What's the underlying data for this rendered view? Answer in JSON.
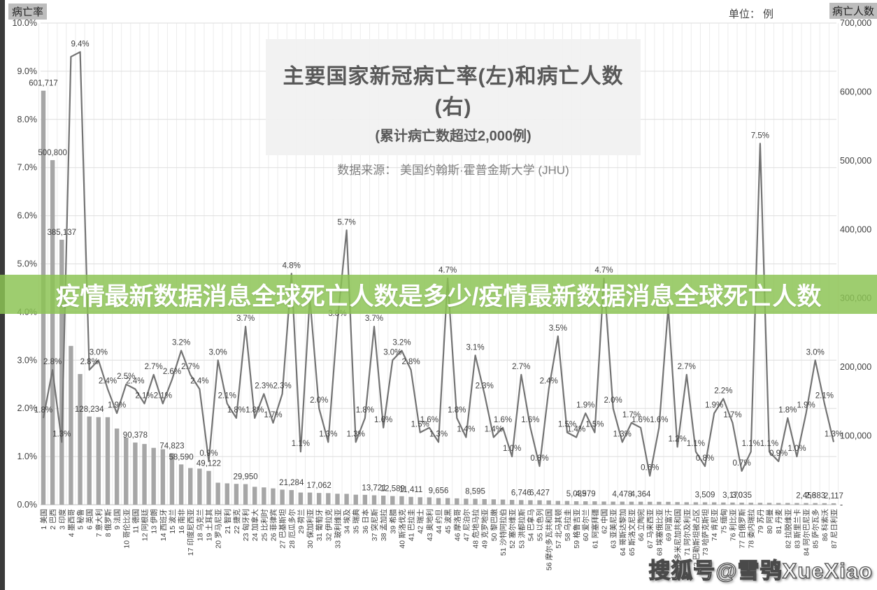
{
  "corner": {
    "left_axis_tag": "病亡率",
    "unit_note": "单位： 例",
    "right_axis_tag": "病亡人数"
  },
  "title_block": {
    "title": "主要国家新冠病亡率(左)和病亡人数(右)",
    "subtitle": "(累计病亡数超过2,000例)",
    "source": "数据来源： 美国约翰斯·霍普金斯大学 (JHU)"
  },
  "overlay_banner": {
    "text": "疫情最新数据消息全球死亡人数是多少/疫情最新数据消息全球死亡人数",
    "bg_color": "#8bc454"
  },
  "watermark": {
    "text": "搜狐号@雪鸮XueXiao"
  },
  "chart_data": {
    "type": "bar+line-dual-axis",
    "bar_series_name": "病亡人数",
    "line_series_name": "病亡率",
    "bar_color": "#a6a6a6",
    "line_color": "#737373",
    "grid_color": "#dedede",
    "vgrid_color": "#ececec",
    "label_color": "#3f3f3f",
    "left_axis": {
      "min": 0,
      "max": 10,
      "ticks": [
        "10.0%",
        "9.0%",
        "8.0%",
        "7.0%",
        "6.0%",
        "5.0%",
        "4.0%",
        "3.0%",
        "2.0%",
        "1.0%",
        "0.0%"
      ]
    },
    "right_axis": {
      "min": 0,
      "max": 700000,
      "ticks": [
        "700,000",
        "600,000",
        "500,000",
        "400,000",
        "300,000",
        "200,000",
        "100,000",
        "-"
      ]
    },
    "countries": [
      {
        "label": "1 美国",
        "deaths": 601717,
        "deaths_label": "601,717",
        "cfr": 1.8,
        "cfr_label": "1.8%"
      },
      {
        "label": "2 巴西",
        "deaths": 500800,
        "deaths_label": "500,800",
        "cfr": 2.8,
        "cfr_label": "2.8%"
      },
      {
        "label": "3 印度",
        "deaths": 385137,
        "deaths_label": "385,137",
        "cfr": 1.3,
        "cfr_label": "1.3%"
      },
      {
        "label": "4 墨西哥",
        "deaths": 230792,
        "deaths_label": "",
        "cfr": 9.3,
        "cfr_label": ""
      },
      {
        "label": "5 秘鲁",
        "deaths": 189933,
        "deaths_label": "",
        "cfr": 9.4,
        "cfr_label": "9.4%"
      },
      {
        "label": "6 英国",
        "deaths": 128234,
        "deaths_label": "128,234",
        "cfr": 2.8,
        "cfr_label": "2.8%"
      },
      {
        "label": "7 意大利",
        "deaths": 127291,
        "deaths_label": "",
        "cfr": 3.0,
        "cfr_label": "3.0%"
      },
      {
        "label": "8 俄罗斯",
        "deaths": 127180,
        "deaths_label": "",
        "cfr": 2.4,
        "cfr_label": "2.4%"
      },
      {
        "label": "9 法国",
        "deaths": 110702,
        "deaths_label": "",
        "cfr": 1.9,
        "cfr_label": "1.9%"
      },
      {
        "label": "10 哥伦比亚",
        "deaths": 97560,
        "deaths_label": "",
        "cfr": 2.5,
        "cfr_label": "2.5%"
      },
      {
        "label": "11 德国",
        "deaths": 90378,
        "deaths_label": "90,378",
        "cfr": 2.4,
        "cfr_label": "2.4%"
      },
      {
        "label": "12 阿根廷",
        "deaths": 88247,
        "deaths_label": "",
        "cfr": 2.1,
        "cfr_label": "2.1%"
      },
      {
        "label": "13 伊朗",
        "deaths": 82619,
        "deaths_label": "",
        "cfr": 2.7,
        "cfr_label": "2.7%"
      },
      {
        "label": "14 西班牙",
        "deaths": 80634,
        "deaths_label": "",
        "cfr": 2.1,
        "cfr_label": "2.1%"
      },
      {
        "label": "15 波兰",
        "deaths": 74823,
        "deaths_label": "74,823",
        "cfr": 2.6,
        "cfr_label": "2.6%"
      },
      {
        "label": "16 南非",
        "deaths": 58590,
        "deaths_label": "58,590",
        "cfr": 3.2,
        "cfr_label": "3.2%"
      },
      {
        "label": "17 印度尼西亚",
        "deaths": 53280,
        "deaths_label": "",
        "cfr": 2.7,
        "cfr_label": "2.7%"
      },
      {
        "label": "18 乌克兰",
        "deaths": 52414,
        "deaths_label": "",
        "cfr": 2.4,
        "cfr_label": "2.4%"
      },
      {
        "label": "19 土耳其",
        "deaths": 49122,
        "deaths_label": "49,122",
        "cfr": 0.9,
        "cfr_label": "0.9%"
      },
      {
        "label": "20 罗马尼亚",
        "deaths": 31969,
        "deaths_label": "",
        "cfr": 3.0,
        "cfr_label": "3.0%"
      },
      {
        "label": "21 智利",
        "deaths": 31068,
        "deaths_label": "",
        "cfr": 2.1,
        "cfr_label": "2.1%"
      },
      {
        "label": "22 捷克",
        "deaths": 30280,
        "deaths_label": "",
        "cfr": 1.8,
        "cfr_label": "1.8%"
      },
      {
        "label": "23 匈牙利",
        "deaths": 29950,
        "deaths_label": "29,950",
        "cfr": 3.7,
        "cfr_label": "3.7%"
      },
      {
        "label": "24 加拿大",
        "deaths": 26035,
        "deaths_label": "",
        "cfr": 1.8,
        "cfr_label": "1.8%"
      },
      {
        "label": "25 比利时",
        "deaths": 25141,
        "deaths_label": "",
        "cfr": 2.3,
        "cfr_label": "2.3%"
      },
      {
        "label": "26 菲律宾",
        "deaths": 23749,
        "deaths_label": "",
        "cfr": 1.7,
        "cfr_label": "1.7%"
      },
      {
        "label": "27 巴基斯坦",
        "deaths": 21913,
        "deaths_label": "",
        "cfr": 2.3,
        "cfr_label": "2.3%"
      },
      {
        "label": "28 厄瓜多尔",
        "deaths": 21284,
        "deaths_label": "21,284",
        "cfr": 4.8,
        "cfr_label": "4.8%"
      },
      {
        "label": "29 荷兰",
        "deaths": 17720,
        "deaths_label": "",
        "cfr": 1.1,
        "cfr_label": "1.1%"
      },
      {
        "label": "30 保加利亚",
        "deaths": 17678,
        "deaths_label": "",
        "cfr": 4.3,
        "cfr_label": ""
      },
      {
        "label": "31 葡萄牙",
        "deaths": 17062,
        "deaths_label": "17,062",
        "cfr": 2.0,
        "cfr_label": "2.0%"
      },
      {
        "label": "32 伊拉克",
        "deaths": 16834,
        "deaths_label": "",
        "cfr": 1.3,
        "cfr_label": "1.3%"
      },
      {
        "label": "33 玻利维亚",
        "deaths": 15938,
        "deaths_label": "",
        "cfr": 3.8,
        "cfr_label": "3.8%"
      },
      {
        "label": "34 埃及",
        "deaths": 15791,
        "deaths_label": "",
        "cfr": 5.7,
        "cfr_label": "5.7%"
      },
      {
        "label": "35 瑞典",
        "deaths": 14574,
        "deaths_label": "",
        "cfr": 1.3,
        "cfr_label": "1.3%"
      },
      {
        "label": "36 日本",
        "deaths": 14357,
        "deaths_label": "",
        "cfr": 1.8,
        "cfr_label": "1.8%"
      },
      {
        "label": "37 突尼斯",
        "deaths": 13721,
        "deaths_label": "13,721",
        "cfr": 3.7,
        "cfr_label": "3.7%"
      },
      {
        "label": "38 孟加拉",
        "deaths": 13222,
        "deaths_label": "",
        "cfr": 1.6,
        "cfr_label": "1.6%"
      },
      {
        "label": "39 希腊",
        "deaths": 12589,
        "deaths_label": "12,589",
        "cfr": 3.0,
        "cfr_label": "3.0%"
      },
      {
        "label": "40 斯洛伐克",
        "deaths": 12426,
        "deaths_label": "",
        "cfr": 3.2,
        "cfr_label": "3.2%"
      },
      {
        "label": "41 巴拉圭",
        "deaths": 11411,
        "deaths_label": "11,411",
        "cfr": 2.8,
        "cfr_label": "2.8%"
      },
      {
        "label": "42 瑞士",
        "deaths": 10882,
        "deaths_label": "",
        "cfr": 1.5,
        "cfr_label": "1.5%"
      },
      {
        "label": "43 奥地利",
        "deaths": 10690,
        "deaths_label": "",
        "cfr": 1.6,
        "cfr_label": "1.6%"
      },
      {
        "label": "44 约旦",
        "deaths": 9656,
        "deaths_label": "9,656",
        "cfr": 1.3,
        "cfr_label": "1.3%"
      },
      {
        "label": "45 波黑",
        "deaths": 9596,
        "deaths_label": "",
        "cfr": 4.7,
        "cfr_label": "4.7%"
      },
      {
        "label": "46 摩洛哥",
        "deaths": 9265,
        "deaths_label": "",
        "cfr": 1.8,
        "cfr_label": "1.8%"
      },
      {
        "label": "47 尼泊尔",
        "deaths": 8726,
        "deaths_label": "",
        "cfr": 1.4,
        "cfr_label": "1.4%"
      },
      {
        "label": "48 危地马拉",
        "deaths": 8595,
        "deaths_label": "8,595",
        "cfr": 3.1,
        "cfr_label": "3.1%"
      },
      {
        "label": "49 克罗地亚",
        "deaths": 8173,
        "deaths_label": "",
        "cfr": 2.3,
        "cfr_label": "2.3%"
      },
      {
        "label": "50 黎巴嫩",
        "deaths": 7845,
        "deaths_label": "",
        "cfr": 1.4,
        "cfr_label": "1.4%"
      },
      {
        "label": "51 沙特阿拉伯",
        "deaths": 7537,
        "deaths_label": "",
        "cfr": 1.6,
        "cfr_label": "1.6%"
      },
      {
        "label": "52 塞尔维亚",
        "deaths": 6993,
        "deaths_label": "",
        "cfr": 1.0,
        "cfr_label": "1.0%"
      },
      {
        "label": "53 洪都拉斯",
        "deaths": 6746,
        "deaths_label": "6,746",
        "cfr": 2.7,
        "cfr_label": "2.7%"
      },
      {
        "label": "54 巴拿马",
        "deaths": 6505,
        "deaths_label": "",
        "cfr": 1.6,
        "cfr_label": "1.6%"
      },
      {
        "label": "55 以色列",
        "deaths": 6427,
        "deaths_label": "6,427",
        "cfr": 0.8,
        "cfr_label": "0.8%"
      },
      {
        "label": "56 摩尔多瓦共和国",
        "deaths": 6206,
        "deaths_label": "",
        "cfr": 2.4,
        "cfr_label": "2.4%"
      },
      {
        "label": "57 北马其顿",
        "deaths": 5488,
        "deaths_label": "",
        "cfr": 3.5,
        "cfr_label": "3.5%"
      },
      {
        "label": "58 乌拉圭",
        "deaths": 5395,
        "deaths_label": "",
        "cfr": 1.5,
        "cfr_label": "1.5%"
      },
      {
        "label": "59 格鲁吉亚",
        "deaths": 5035,
        "deaths_label": "5,035",
        "cfr": 1.4,
        "cfr_label": "1.4%"
      },
      {
        "label": "60 爱尔兰",
        "deaths": 4979,
        "deaths_label": "4,979",
        "cfr": 1.9,
        "cfr_label": "1.9%"
      },
      {
        "label": "61 阿塞拜疆",
        "deaths": 4959,
        "deaths_label": "",
        "cfr": 1.5,
        "cfr_label": "1.5%"
      },
      {
        "label": "62 中国",
        "deaths": 4636,
        "deaths_label": "",
        "cfr": 4.7,
        "cfr_label": "4.7%"
      },
      {
        "label": "63 亚美尼亚",
        "deaths": 4512,
        "deaths_label": "",
        "cfr": 2.0,
        "cfr_label": "2.0%"
      },
      {
        "label": "64 哥斯达黎加",
        "deaths": 4478,
        "deaths_label": "4,478",
        "cfr": 1.3,
        "cfr_label": "1.3%"
      },
      {
        "label": "65 斯洛文尼亚",
        "deaths": 4397,
        "deaths_label": "",
        "cfr": 1.7,
        "cfr_label": "1.7%"
      },
      {
        "label": "66 立陶宛",
        "deaths": 4364,
        "deaths_label": "4,364",
        "cfr": 1.6,
        "cfr_label": "1.6%"
      },
      {
        "label": "67 马来西亚",
        "deaths": 4276,
        "deaths_label": "",
        "cfr": 0.6,
        "cfr_label": "0.6%"
      },
      {
        "label": "68 埃塞俄比亚",
        "deaths": 4257,
        "deaths_label": "",
        "cfr": 1.6,
        "cfr_label": "1.6%"
      },
      {
        "label": "69 阿富汗",
        "deaths": 4215,
        "deaths_label": "",
        "cfr": 4.1,
        "cfr_label": ""
      },
      {
        "label": "70 多米尼加共和国",
        "deaths": 3824,
        "deaths_label": "",
        "cfr": 1.2,
        "cfr_label": "1.2%"
      },
      {
        "label": "71 阿尔及利亚",
        "deaths": 3631,
        "deaths_label": "",
        "cfr": 2.7,
        "cfr_label": "2.7%"
      },
      {
        "label": "72 巴勒斯坦被占区",
        "deaths": 3554,
        "deaths_label": "",
        "cfr": 1.1,
        "cfr_label": "1.1%"
      },
      {
        "label": "73 哈萨克斯坦",
        "deaths": 3509,
        "deaths_label": "3,509",
        "cfr": 0.8,
        "cfr_label": "0.8%"
      },
      {
        "label": "74 肯尼亚",
        "deaths": 3497,
        "deaths_label": "",
        "cfr": 1.9,
        "cfr_label": "1.9%"
      },
      {
        "label": "75 缅甸",
        "deaths": 3247,
        "deaths_label": "",
        "cfr": 2.2,
        "cfr_label": "2.2%"
      },
      {
        "label": "76 利比亚",
        "deaths": 3170,
        "deaths_label": "3,170",
        "cfr": 1.7,
        "cfr_label": "1.7%"
      },
      {
        "label": "77 白俄罗斯",
        "deaths": 3035,
        "deaths_label": "3,035",
        "cfr": 0.7,
        "cfr_label": "0.7%"
      },
      {
        "label": "78 委内瑞拉",
        "deaths": 2918,
        "deaths_label": "",
        "cfr": 1.1,
        "cfr_label": "1.1%"
      },
      {
        "label": "79 苏丹",
        "deaths": 2761,
        "deaths_label": "",
        "cfr": 7.5,
        "cfr_label": "7.5%"
      },
      {
        "label": "80 阿曼",
        "deaths": 2704,
        "deaths_label": "",
        "cfr": 1.1,
        "cfr_label": "1.1%"
      },
      {
        "label": "81 丹麦",
        "deaths": 2532,
        "deaths_label": "",
        "cfr": 0.9,
        "cfr_label": "0.9%"
      },
      {
        "label": "82 拉脱维亚",
        "deaths": 2512,
        "deaths_label": "",
        "cfr": 1.8,
        "cfr_label": "1.8%"
      },
      {
        "label": "83 斯里兰卡",
        "deaths": 2464,
        "deaths_label": "",
        "cfr": 1.0,
        "cfr_label": "1.0%"
      },
      {
        "label": "84 阿尔巴尼亚",
        "deaths": 2456,
        "deaths_label": "2,456",
        "cfr": 1.9,
        "cfr_label": "1.9%"
      },
      {
        "label": "85 萨尔瓦多",
        "deaths": 2383,
        "deaths_label": "2,383",
        "cfr": 3.0,
        "cfr_label": "3.0%"
      },
      {
        "label": "86 科索沃",
        "deaths": 2248,
        "deaths_label": "",
        "cfr": 2.1,
        "cfr_label": "2.1%"
      },
      {
        "label": "87 尼日利亚",
        "deaths": 2117,
        "deaths_label": "2,117",
        "cfr": 1.3,
        "cfr_label": "1.3%"
      }
    ]
  }
}
